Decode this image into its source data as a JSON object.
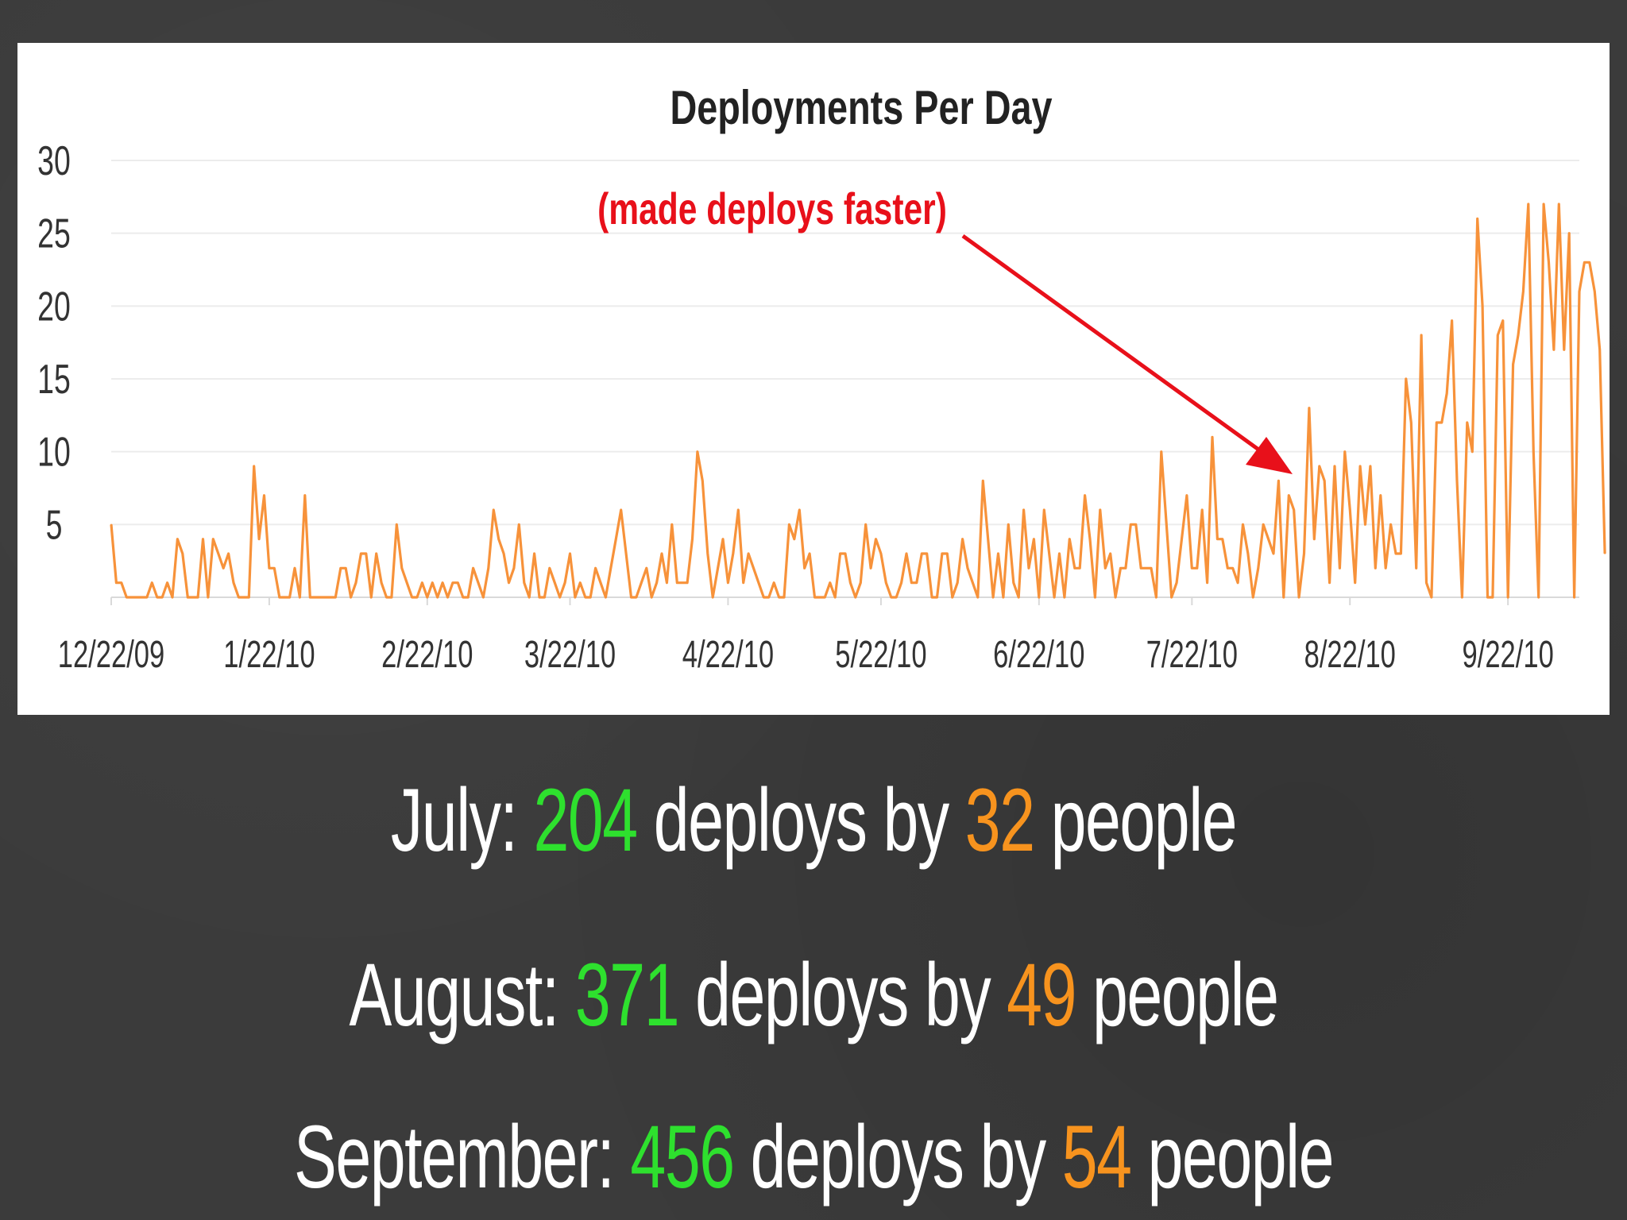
{
  "chart_data": {
    "type": "line",
    "title": "Deployments Per Day",
    "xlabel": "",
    "ylabel": "",
    "ylim": [
      0,
      30
    ],
    "yticks": [
      "5",
      "10",
      "15",
      "20",
      "25",
      "30"
    ],
    "xlim": [
      "2009-12-22",
      "2010-10-06"
    ],
    "xticks": [
      {
        "date": "2009-12-22",
        "label": "12/22/09"
      },
      {
        "date": "2010-01-22",
        "label": "1/22/10"
      },
      {
        "date": "2010-02-22",
        "label": "2/22/10"
      },
      {
        "date": "2010-03-22",
        "label": "3/22/10"
      },
      {
        "date": "2010-04-22",
        "label": "4/22/10"
      },
      {
        "date": "2010-05-22",
        "label": "5/22/10"
      },
      {
        "date": "2010-06-22",
        "label": "6/22/10"
      },
      {
        "date": "2010-07-22",
        "label": "7/22/10"
      },
      {
        "date": "2010-08-22",
        "label": "8/22/10"
      },
      {
        "date": "2010-09-22",
        "label": "9/22/10"
      }
    ],
    "grid": true,
    "line_color": "#f7923a",
    "annotation": {
      "text": "(made deploys faster)",
      "color": "#e8101a",
      "points_to_date": "2010-08-11",
      "points_to_value": 9
    },
    "series": [
      {
        "x_start": "2009-12-22",
        "x_step_days": 1,
        "values": [
          5,
          1,
          1,
          0,
          0,
          0,
          0,
          0,
          1,
          0,
          0,
          1,
          0,
          4,
          3,
          0,
          0,
          0,
          4,
          0,
          4,
          3,
          2,
          3,
          1,
          0,
          0,
          0,
          9,
          4,
          7,
          2,
          2,
          0,
          0,
          0,
          2,
          0,
          7,
          0,
          0,
          0,
          0,
          0,
          0,
          2,
          2,
          0,
          1,
          3,
          3,
          0,
          3,
          1,
          0,
          0,
          5,
          2,
          1,
          0,
          0,
          1,
          0,
          1,
          0,
          1,
          0,
          1,
          1,
          0,
          0,
          2,
          1,
          0,
          2,
          6,
          4,
          3,
          1,
          2,
          5,
          1,
          0,
          3,
          0,
          0,
          2,
          1,
          0,
          1,
          3,
          0,
          1,
          0,
          0,
          2,
          1,
          0,
          2,
          4,
          6,
          3,
          0,
          0,
          1,
          2,
          0,
          1,
          3,
          1,
          5,
          1,
          1,
          1,
          4,
          10,
          8,
          3,
          0,
          2,
          4,
          1,
          3,
          6,
          1,
          3,
          2,
          1,
          0,
          0,
          1,
          0,
          0,
          5,
          4,
          6,
          2,
          3,
          0,
          0,
          0,
          1,
          0,
          3,
          3,
          1,
          0,
          1,
          5,
          2,
          4,
          3,
          1,
          0,
          0,
          1,
          3,
          1,
          1,
          3,
          3,
          0,
          0,
          3,
          3,
          0,
          1,
          4,
          2,
          1,
          0,
          8,
          4,
          0,
          3,
          0,
          5,
          1,
          0,
          6,
          2,
          4,
          0,
          6,
          3,
          0,
          3,
          0,
          4,
          2,
          2,
          7,
          4,
          0,
          6,
          2,
          3,
          0,
          2,
          2,
          5,
          5,
          2,
          2,
          2,
          0,
          10,
          5,
          0,
          1,
          4,
          7,
          2,
          2,
          6,
          1,
          11,
          4,
          4,
          2,
          2,
          1,
          5,
          3,
          0,
          2,
          5,
          4,
          3,
          8,
          0,
          7,
          6,
          0,
          3,
          13,
          4,
          9,
          8,
          1,
          9,
          2,
          10,
          6,
          1,
          9,
          5,
          9,
          2,
          7,
          2,
          5,
          3,
          3,
          15,
          12,
          2,
          18,
          1,
          0,
          12,
          12,
          14,
          19,
          8,
          0,
          12,
          10,
          26,
          20,
          0,
          0,
          18,
          19,
          0,
          16,
          18,
          21,
          27,
          10,
          0,
          27,
          23,
          17,
          27,
          17,
          25,
          0,
          21,
          23,
          23,
          21,
          17,
          3
        ],
        "x_step_unit": "days"
      }
    ]
  },
  "stats": [
    {
      "month": "July:",
      "deploys": "204",
      "mid": "deploys by",
      "people": "32",
      "tail": "people"
    },
    {
      "month": "August:",
      "deploys": "371",
      "mid": "deploys by",
      "people": "49",
      "tail": "people"
    },
    {
      "month": "September:",
      "deploys": "456",
      "mid": "deploys by",
      "people": "54",
      "tail": "people"
    }
  ],
  "colors": {
    "background": "#3b3b3b",
    "deploys_highlight": "#2ee02e",
    "people_highlight": "#f7931e",
    "text": "#ffffff"
  }
}
